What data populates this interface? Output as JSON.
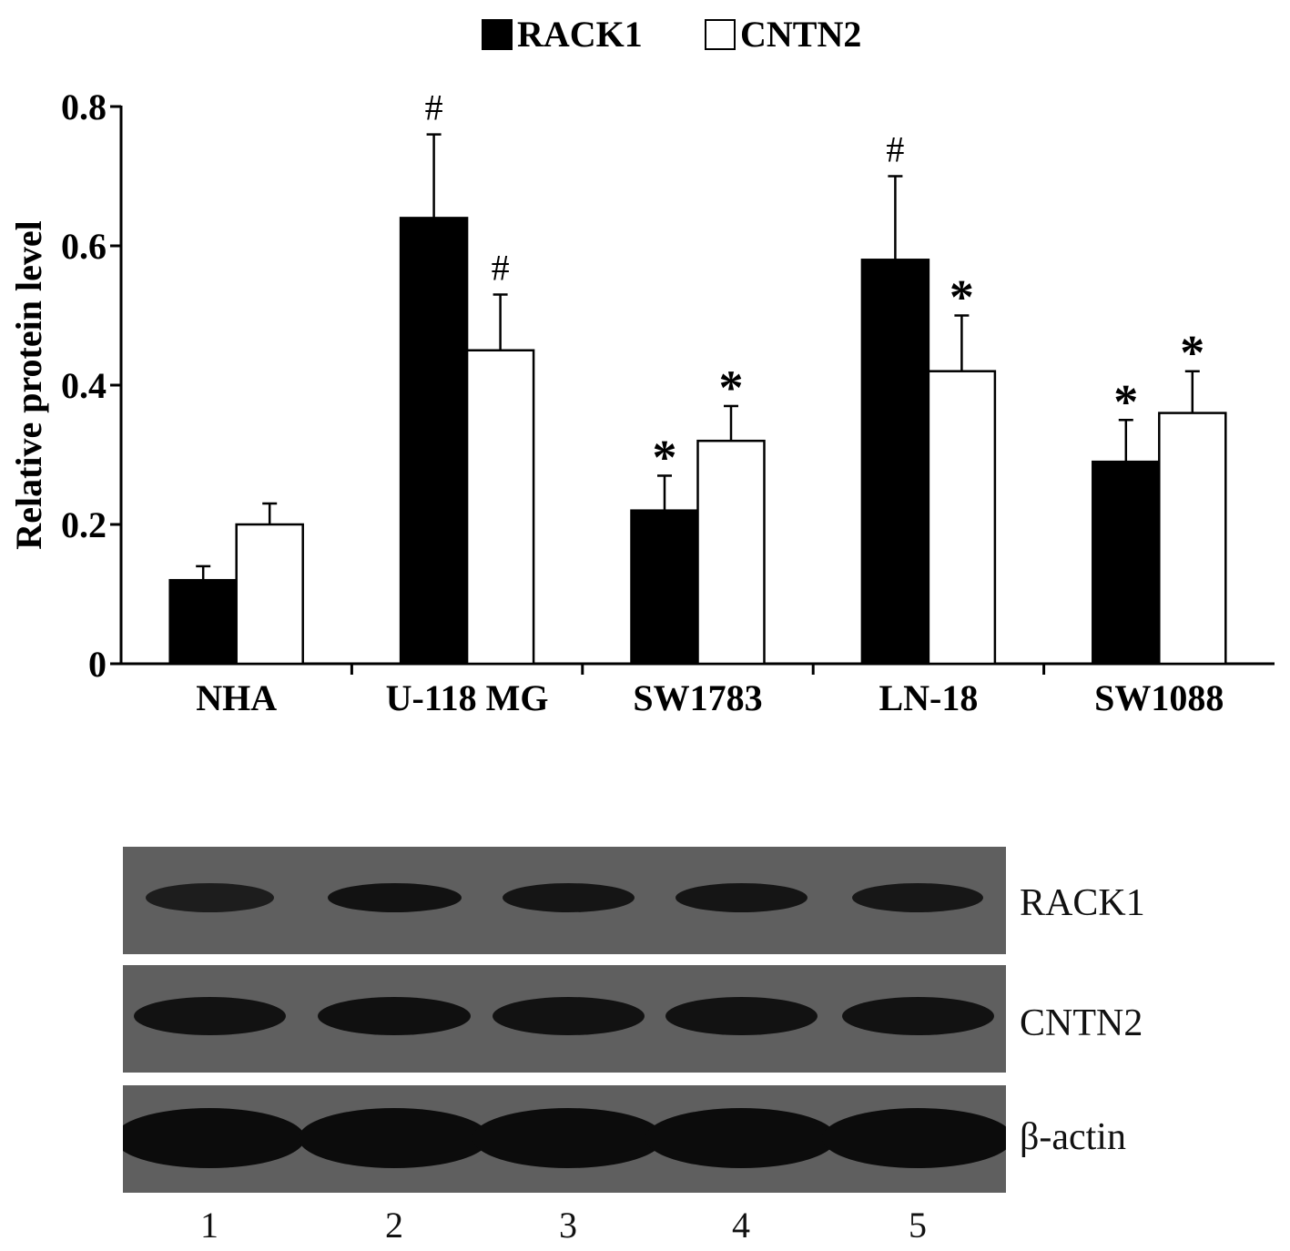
{
  "chart_data": {
    "type": "bar",
    "title": "",
    "xlabel": "",
    "ylabel": "Relative protein level",
    "ylim": [
      0,
      0.8
    ],
    "yticks": [
      0,
      0.2,
      0.4,
      0.6,
      0.8
    ],
    "ytick_labels": [
      "0",
      "0.2",
      "0.4",
      "0.6",
      "0.8"
    ],
    "categories": [
      "NHA",
      "U-118 MG",
      "SW1783",
      "LN-18",
      "SW1088"
    ],
    "legend_position": "top-center",
    "grid": false,
    "series": [
      {
        "name": "RACK1",
        "fill": "#000000",
        "values": [
          0.12,
          0.64,
          0.22,
          0.58,
          0.29
        ],
        "errors": [
          0.02,
          0.12,
          0.05,
          0.12,
          0.06
        ],
        "annotations": [
          "",
          "#",
          "*",
          "#",
          "*"
        ]
      },
      {
        "name": "CNTN2",
        "fill": "#ffffff",
        "values": [
          0.2,
          0.45,
          0.32,
          0.42,
          0.36
        ],
        "errors": [
          0.03,
          0.08,
          0.05,
          0.08,
          0.06
        ],
        "annotations": [
          "",
          "#",
          "*",
          "*",
          "*"
        ]
      }
    ]
  },
  "blot": {
    "rows": [
      {
        "label": "RACK1",
        "intensity": [
          0.55,
          0.85,
          0.75,
          0.75,
          0.7
        ]
      },
      {
        "label": "CNTN2",
        "intensity": [
          0.85,
          0.9,
          0.85,
          0.85,
          0.85
        ]
      },
      {
        "label": "β-actin",
        "intensity": [
          1.0,
          1.0,
          1.0,
          1.0,
          1.0
        ]
      }
    ],
    "lanes": [
      "1",
      "2",
      "3",
      "4",
      "5"
    ]
  }
}
